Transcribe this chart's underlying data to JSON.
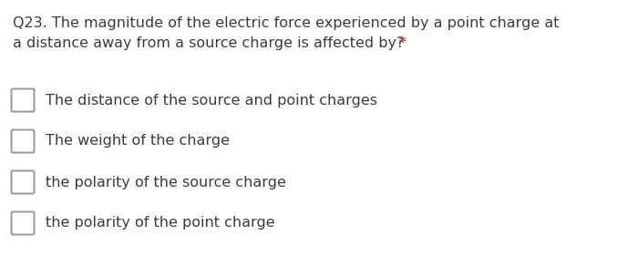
{
  "background_color": "#ffffff",
  "question_line1": "Q23. The magnitude of the electric force experienced by a point charge at",
  "question_line2": "a distance away from a source charge is affected by?",
  "asterisk": " *",
  "question_color": "#3c3c3c",
  "asterisk_color": "#e53935",
  "options": [
    "The distance of the source and point charges",
    "The weight of the charge",
    "the polarity of the source charge",
    "the polarity of the point charge"
  ],
  "option_color": "#3c3c3c",
  "checkbox_edge_color": "#999999",
  "checkbox_fill_color": "#ffffff",
  "question_fontsize": 11.5,
  "option_fontsize": 11.5,
  "fig_width": 7.0,
  "fig_height": 2.92
}
